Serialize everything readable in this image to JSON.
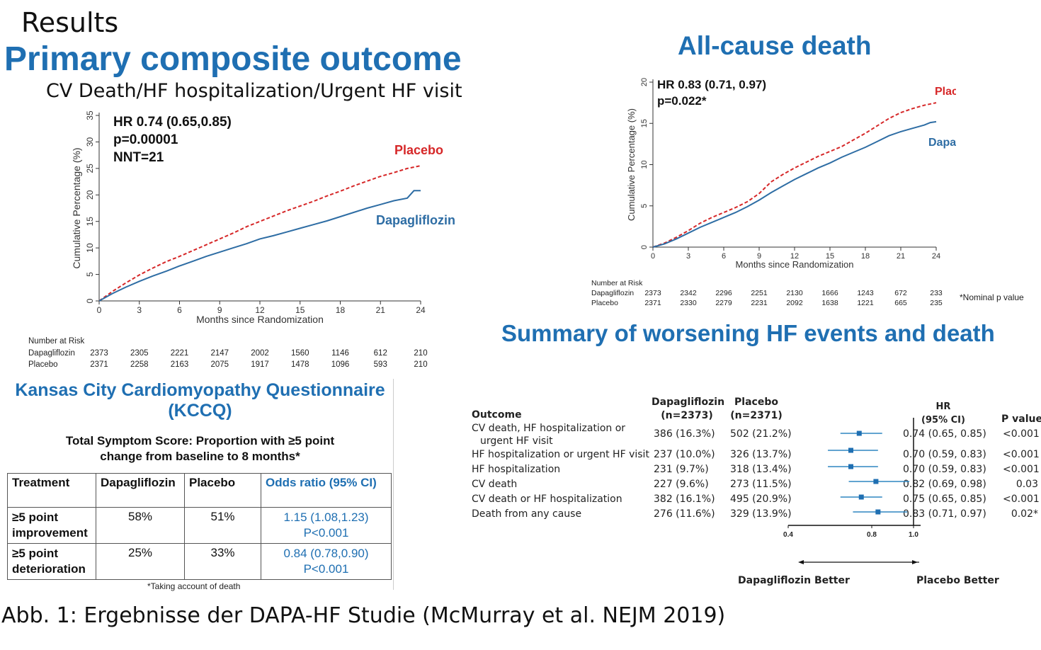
{
  "header": {
    "results": "Results",
    "primary_title": "Primary composite outcome",
    "primary_subtitle": "CV Death/HF hospitalization/Urgent HF visit",
    "acd_title": "All-cause death",
    "summary_title": "Summary of worsening HF events and death",
    "caption": "Abb. 1: Ergebnisse der DAPA-HF Studie (McMurray et al. NEJM 2019)"
  },
  "chart_data": [
    {
      "type": "line",
      "title": "Primary composite outcome",
      "subtitle": "CV Death/HF hospitalization/Urgent HF visit",
      "xlabel": "Months since Randomization",
      "ylabel": "Cumulative Percentage (%)",
      "xlim": [
        0,
        24
      ],
      "ylim": [
        0,
        35
      ],
      "xticks": [
        0,
        3,
        6,
        9,
        12,
        15,
        18,
        21,
        24
      ],
      "yticks": [
        0,
        5,
        10,
        15,
        20,
        25,
        30,
        35
      ],
      "annotation": [
        "HR 0.74 (0.65,0.85)",
        "p=0.00001",
        "NNT=21"
      ],
      "series": [
        {
          "name": "Placebo",
          "color": "#d62728",
          "dash": true,
          "x": [
            0,
            1,
            2,
            3,
            4,
            5,
            6,
            7,
            8,
            9,
            10,
            11,
            12,
            13,
            14,
            15,
            16,
            17,
            18,
            19,
            20,
            21,
            22,
            23,
            24
          ],
          "y": [
            0,
            1.8,
            3.4,
            4.9,
            6.2,
            7.4,
            8.4,
            9.5,
            10.6,
            11.7,
            12.8,
            14.0,
            15.0,
            16.0,
            17.0,
            17.9,
            18.8,
            19.8,
            20.7,
            21.7,
            22.6,
            23.5,
            24.2,
            25.0,
            25.5
          ]
        },
        {
          "name": "Dapagliflozin",
          "color": "#2e6da4",
          "dash": false,
          "x": [
            0,
            1,
            2,
            3,
            4,
            5,
            6,
            7,
            8,
            9,
            10,
            11,
            12,
            13,
            14,
            15,
            16,
            17,
            18,
            19,
            20,
            21,
            22,
            23,
            23.5,
            24
          ],
          "y": [
            0,
            1.4,
            2.6,
            3.7,
            4.7,
            5.6,
            6.6,
            7.5,
            8.4,
            9.2,
            10.0,
            10.8,
            11.7,
            12.3,
            13.0,
            13.7,
            14.4,
            15.1,
            15.9,
            16.7,
            17.5,
            18.2,
            18.9,
            19.4,
            20.8,
            20.8
          ]
        }
      ],
      "risk": {
        "header": "Number at Risk",
        "rows": [
          {
            "label": "Dapagliflozin",
            "values": [
              "2373",
              "2305",
              "2221",
              "2147",
              "2002",
              "1560",
              "1146",
              "612",
              "210"
            ]
          },
          {
            "label": "Placebo",
            "values": [
              "2371",
              "2258",
              "2163",
              "2075",
              "1917",
              "1478",
              "1096",
              "593",
              "210"
            ]
          }
        ]
      }
    },
    {
      "type": "line",
      "title": "All-cause death",
      "xlabel": "Months since Randomization",
      "ylabel": "Cumulative Percentage (%)",
      "xlim": [
        0,
        24
      ],
      "ylim": [
        0,
        20
      ],
      "xticks": [
        0,
        3,
        6,
        9,
        12,
        15,
        18,
        21,
        24
      ],
      "yticks": [
        0,
        5,
        10,
        15,
        20
      ],
      "annotation": [
        "HR 0.83 (0.71, 0.97)",
        "p=0.022*"
      ],
      "footnote": "*Nominal p value",
      "series": [
        {
          "name": "Placebo",
          "color": "#d62728",
          "dash": true,
          "x": [
            0,
            1,
            2,
            3,
            4,
            5,
            6,
            7,
            8,
            9,
            10,
            11,
            12,
            13,
            14,
            15,
            16,
            17,
            18,
            19,
            20,
            21,
            22,
            23,
            24
          ],
          "y": [
            0,
            0.5,
            1.2,
            2.0,
            2.9,
            3.6,
            4.2,
            4.8,
            5.5,
            6.5,
            7.9,
            8.8,
            9.6,
            10.3,
            11.0,
            11.6,
            12.2,
            13.0,
            13.8,
            14.7,
            15.6,
            16.3,
            16.8,
            17.2,
            17.5
          ]
        },
        {
          "name": "Dapagliflozin",
          "color": "#2e6da4",
          "dash": false,
          "x": [
            0,
            1,
            2,
            3,
            4,
            5,
            6,
            7,
            8,
            9,
            10,
            11,
            12,
            13,
            14,
            15,
            16,
            17,
            18,
            19,
            20,
            21,
            22,
            23,
            23.5,
            24
          ],
          "y": [
            0,
            0.4,
            1.0,
            1.7,
            2.4,
            3.0,
            3.6,
            4.2,
            4.9,
            5.7,
            6.6,
            7.4,
            8.2,
            8.9,
            9.6,
            10.2,
            10.9,
            11.5,
            12.1,
            12.8,
            13.5,
            14.0,
            14.4,
            14.8,
            15.1,
            15.2
          ]
        }
      ],
      "risk": {
        "header": "Number at Risk",
        "rows": [
          {
            "label": "Dapagliflozin",
            "values": [
              "2373",
              "2342",
              "2296",
              "2251",
              "2130",
              "1666",
              "1243",
              "672",
              "233"
            ]
          },
          {
            "label": "Placebo",
            "values": [
              "2371",
              "2330",
              "2279",
              "2231",
              "2092",
              "1638",
              "1221",
              "665",
              "235"
            ]
          }
        ]
      }
    },
    {
      "type": "table",
      "title": "Kansas City Cardiomyopathy Questionnaire (KCCQ)",
      "subtitle_line1": "Total Symptom Score: Proportion with ≥5 point",
      "subtitle_line2": "change from baseline to 8 months*",
      "columns": [
        "Treatment",
        "Dapagliflozin",
        "Placebo",
        "Odds ratio (95% CI)"
      ],
      "rows": [
        {
          "treatment_1": "≥5 point",
          "treatment_2": "improvement",
          "dapagliflozin": "58%",
          "placebo": "51%",
          "or": "1.15 (1.08,1.23)",
          "p": "P<0.001"
        },
        {
          "treatment_1": "≥5 point",
          "treatment_2": "deterioration",
          "dapagliflozin": "25%",
          "placebo": "33%",
          "or": "0.84 (0.78,0.90)",
          "p": "P<0.001"
        }
      ],
      "footnote": "*Taking account of death"
    },
    {
      "type": "scatter",
      "title": "Summary of worsening HF events and death",
      "headers": {
        "outcome": "Outcome",
        "dapa_1": "Dapagliflozin",
        "dapa_2": "(n=2373)",
        "placebo_1": "Placebo",
        "placebo_2": "(n=2371)",
        "hr_1": "HR",
        "hr_2": "(95% CI)",
        "p": "P value"
      },
      "xticks": [
        "0.4",
        "0.8",
        "1.0",
        "1.2"
      ],
      "xtick_values": [
        0.4,
        0.8,
        1.0,
        1.2
      ],
      "xlim": [
        0.4,
        1.3
      ],
      "better_left": "Dapagliflozin Better",
      "better_right": "Placebo Better",
      "rows": [
        {
          "outcome_1": "CV death, HF hospitalization or",
          "outcome_2": "urgent HF visit",
          "dapa": "386 (16.3%)",
          "placebo": "502 (21.2%)",
          "hr_text": "0.74 (0.65, 0.85)",
          "p": "<0.001",
          "hr": 0.74,
          "lo": 0.65,
          "hi": 0.85
        },
        {
          "outcome_1": "HF hospitalization or urgent HF visit",
          "outcome_2": "",
          "dapa": "237 (10.0%)",
          "placebo": "326 (13.7%)",
          "hr_text": "0.70 (0.59, 0.83)",
          "p": "<0.001",
          "hr": 0.7,
          "lo": 0.59,
          "hi": 0.83
        },
        {
          "outcome_1": "HF hospitalization",
          "outcome_2": "",
          "dapa": "231  (9.7%)",
          "placebo": "318 (13.4%)",
          "hr_text": "0.70 (0.59, 0.83)",
          "p": "<0.001",
          "hr": 0.7,
          "lo": 0.59,
          "hi": 0.83
        },
        {
          "outcome_1": "CV death",
          "outcome_2": "",
          "dapa": "227  (9.6%)",
          "placebo": "273 (11.5%)",
          "hr_text": "0.82 (0.69, 0.98)",
          "p": "0.03",
          "hr": 0.82,
          "lo": 0.69,
          "hi": 0.98
        },
        {
          "outcome_1": "CV death or HF hospitalization",
          "outcome_2": "",
          "dapa": "382 (16.1%)",
          "placebo": "495 (20.9%)",
          "hr_text": "0.75 (0.65, 0.85)",
          "p": "<0.001",
          "hr": 0.75,
          "lo": 0.65,
          "hi": 0.85
        },
        {
          "outcome_1": "Death from any cause",
          "outcome_2": "",
          "dapa": "276 (11.6%)",
          "placebo": "329 (13.9%)",
          "hr_text": "0.83 (0.71, 0.97)",
          "p": "0.02*",
          "hr": 0.83,
          "lo": 0.71,
          "hi": 0.97
        }
      ]
    }
  ]
}
